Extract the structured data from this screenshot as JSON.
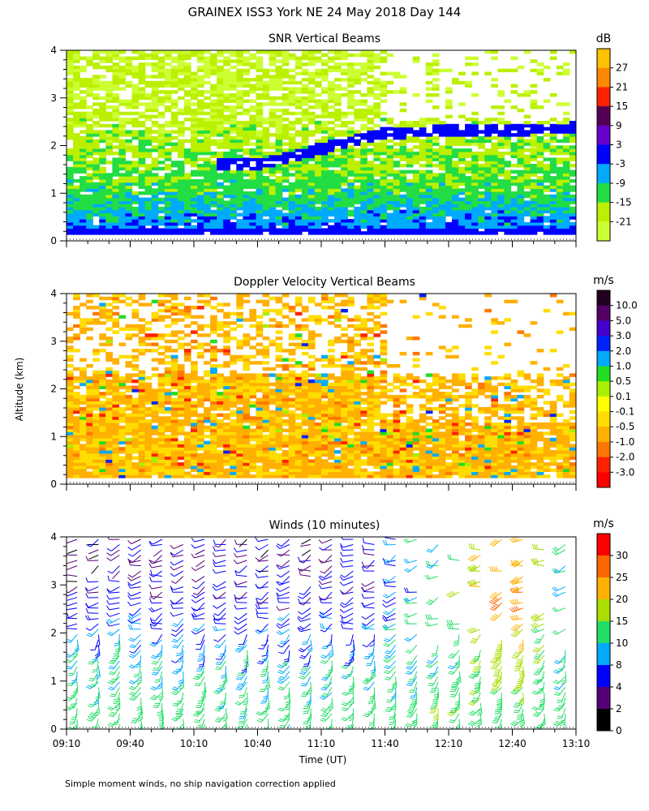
{
  "figure": {
    "title": "GRAINEX ISS3 York NE  24 May 2018 Day 144",
    "ylabel": "Altitude (km)",
    "footnote": "Simple moment winds, no ship navigation correction applied"
  },
  "chart_data": [
    {
      "type": "heatmap",
      "title": "SNR Vertical Beams",
      "xlabel": "",
      "ylabel": "Altitude (km)",
      "x_ticks": [
        "09:10",
        "09:40",
        "10:10",
        "10:40",
        "11:10",
        "11:40",
        "12:10",
        "12:40",
        "13:10"
      ],
      "y_ticks": [
        "0",
        "1",
        "2",
        "3",
        "4"
      ],
      "xlim": [
        "09:10",
        "13:10"
      ],
      "ylim": [
        0,
        4
      ],
      "colorbar": {
        "unit": "dB",
        "labels": [
          "27",
          "21",
          "15",
          "9",
          "3",
          "-3",
          "-9",
          "-15",
          "-21"
        ],
        "colors": [
          "#ffc000",
          "#ff8800",
          "#ff2200",
          "#550055",
          "#6600cc",
          "#0000ff",
          "#00aaff",
          "#22dd44",
          "#bbf000",
          "#ccff33"
        ]
      },
      "layers": [
        {
          "alt": 0.12,
          "value": -3
        },
        {
          "alt": 0.5,
          "value": -6
        },
        {
          "alt": 1.0,
          "value": -12
        },
        {
          "alt": 1.6,
          "value": -15
        },
        {
          "alt": 2.2,
          "value": -18
        },
        {
          "alt": 3.0,
          "value": -21
        },
        {
          "alt": 3.95,
          "value": -21
        }
      ],
      "features": [
        {
          "name": "rising layer",
          "x": [
            "10:20",
            "10:40",
            "11:00",
            "11:20",
            "11:40",
            "12:10",
            "13:10"
          ],
          "alt": [
            1.6,
            1.6,
            1.8,
            2.05,
            2.25,
            2.3,
            2.35
          ],
          "value": -3
        }
      ]
    },
    {
      "type": "heatmap",
      "title": "Doppler Velocity Vertical Beams",
      "xlabel": "",
      "ylabel": "Altitude (km)",
      "x_ticks": [
        "09:10",
        "09:40",
        "10:10",
        "10:40",
        "11:10",
        "11:40",
        "12:10",
        "12:40",
        "13:10"
      ],
      "y_ticks": [
        "0",
        "1",
        "2",
        "3",
        "4"
      ],
      "xlim": [
        "09:10",
        "13:10"
      ],
      "ylim": [
        0,
        4
      ],
      "colorbar": {
        "unit": "m/s",
        "labels": [
          "10.0",
          "5.0",
          "3.0",
          "2.0",
          "1.0",
          "0.5",
          "0.1",
          "-0.1",
          "-0.5",
          "-1.0",
          "-2.0",
          "-3.0"
        ],
        "colors": [
          "#220022",
          "#550066",
          "#4400cc",
          "#0022ff",
          "#00aaff",
          "#22dd22",
          "#aaee00",
          "#ffff00",
          "#ffdd00",
          "#ffb000",
          "#ff7700",
          "#ff2200",
          "#ff0000"
        ]
      },
      "layers": [
        {
          "alt": 0.15,
          "value": -0.5
        },
        {
          "alt": 1.0,
          "value": -0.3
        },
        {
          "alt": 2.0,
          "value": -0.5
        },
        {
          "alt": 3.0,
          "value": -0.5
        },
        {
          "alt": 3.95,
          "value": -1.0
        }
      ]
    },
    {
      "type": "scatter",
      "title": "Winds (10 minutes)",
      "xlabel": "Time (UT)",
      "ylabel": "Altitude (km)",
      "x_ticks": [
        "09:10",
        "09:40",
        "10:10",
        "10:40",
        "11:10",
        "11:40",
        "12:10",
        "12:40",
        "13:10"
      ],
      "y_ticks": [
        "0",
        "1",
        "2",
        "3",
        "4"
      ],
      "xlim": [
        "09:10",
        "13:10"
      ],
      "ylim": [
        0,
        4
      ],
      "colorbar": {
        "unit": "m/s",
        "labels": [
          "30",
          "25",
          "20",
          "15",
          "10",
          "8",
          "4",
          "2",
          "0"
        ],
        "colors": [
          "#ff0000",
          "#ff6600",
          "#ffb000",
          "#aadd00",
          "#22dd66",
          "#00aaff",
          "#0000ff",
          "#550077",
          "#000000"
        ]
      },
      "wind_profiles": [
        {
          "time": "09:10",
          "speed_by_alt": [
            {
              "alt": 0.5,
              "speed": 12
            },
            {
              "alt": 1.5,
              "speed": 10
            },
            {
              "alt": 2.5,
              "speed": 6
            },
            {
              "alt": 3.5,
              "speed": 2
            }
          ]
        },
        {
          "time": "09:40",
          "speed_by_alt": [
            {
              "alt": 0.5,
              "speed": 12
            },
            {
              "alt": 1.5,
              "speed": 10
            },
            {
              "alt": 2.5,
              "speed": 6
            },
            {
              "alt": 3.5,
              "speed": 4
            }
          ]
        },
        {
          "time": "10:10",
          "speed_by_alt": [
            {
              "alt": 0.5,
              "speed": 12
            },
            {
              "alt": 1.5,
              "speed": 9
            },
            {
              "alt": 2.5,
              "speed": 6
            },
            {
              "alt": 3.5,
              "speed": 4
            }
          ]
        },
        {
          "time": "10:40",
          "speed_by_alt": [
            {
              "alt": 0.5,
              "speed": 11
            },
            {
              "alt": 1.5,
              "speed": 9
            },
            {
              "alt": 2.5,
              "speed": 6
            },
            {
              "alt": 3.5,
              "speed": 3
            }
          ]
        },
        {
          "time": "11:10",
          "speed_by_alt": [
            {
              "alt": 0.5,
              "speed": 12
            },
            {
              "alt": 1.5,
              "speed": 9
            },
            {
              "alt": 2.5,
              "speed": 6
            },
            {
              "alt": 3.5,
              "speed": 4
            }
          ]
        },
        {
          "time": "11:40",
          "speed_by_alt": [
            {
              "alt": 0.5,
              "speed": 12
            },
            {
              "alt": 1.5,
              "speed": 10
            },
            {
              "alt": 2.5,
              "speed": 6
            },
            {
              "alt": 3.5,
              "speed": 5
            }
          ]
        },
        {
          "time": "12:10",
          "speed_by_alt": [
            {
              "alt": 0.5,
              "speed": 14
            },
            {
              "alt": 1.5,
              "speed": 10
            },
            {
              "alt": 2.5,
              "speed": 15
            },
            {
              "alt": 3.5,
              "speed": 12
            }
          ]
        },
        {
          "time": "12:40",
          "speed_by_alt": [
            {
              "alt": 0.5,
              "speed": 14
            },
            {
              "alt": 1.5,
              "speed": 20
            },
            {
              "alt": 2.5,
              "speed": 28
            },
            {
              "alt": 3.5,
              "speed": 25
            }
          ]
        },
        {
          "time": "13:10",
          "speed_by_alt": [
            {
              "alt": 0.5,
              "speed": 12
            },
            {
              "alt": 1.5,
              "speed": 8
            },
            {
              "alt": 2.5,
              "speed": 6
            },
            {
              "alt": 3.5,
              "speed": 8
            }
          ]
        }
      ]
    }
  ]
}
